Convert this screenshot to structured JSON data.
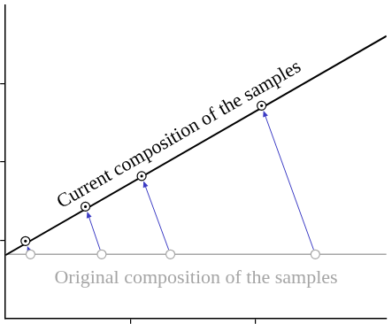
{
  "chart_data": {
    "type": "line",
    "xlim": [
      0,
      3.05
    ],
    "xticks": [
      1,
      2
    ],
    "ylim": [
      0,
      4
    ],
    "yticks": [
      1,
      2,
      3
    ],
    "tick_labels": false,
    "grid": false,
    "series": [
      {
        "name": "Current composition of the samples",
        "color": "#000000",
        "x": [
          0,
          3.05
        ],
        "values": [
          0.81,
          3.61
        ]
      },
      {
        "name": "Original composition of the samples",
        "color": "#a6a6a6",
        "x": [
          0,
          3.05
        ],
        "values": [
          0.82,
          0.82
        ]
      }
    ],
    "original_samples": {
      "color": "#a6a6a6",
      "marker": "circle",
      "x": [
        0.2,
        0.77,
        1.32,
        2.48
      ],
      "values": [
        0.82,
        0.82,
        0.82,
        0.82
      ]
    },
    "current_samples": {
      "color": "#000000",
      "marker": "circled_dot",
      "x": [
        0.16,
        0.64,
        1.09,
        2.05
      ],
      "values": [
        0.99,
        1.43,
        1.82,
        2.72
      ]
    },
    "arrows": {
      "color": "#3b3bc4"
    }
  }
}
